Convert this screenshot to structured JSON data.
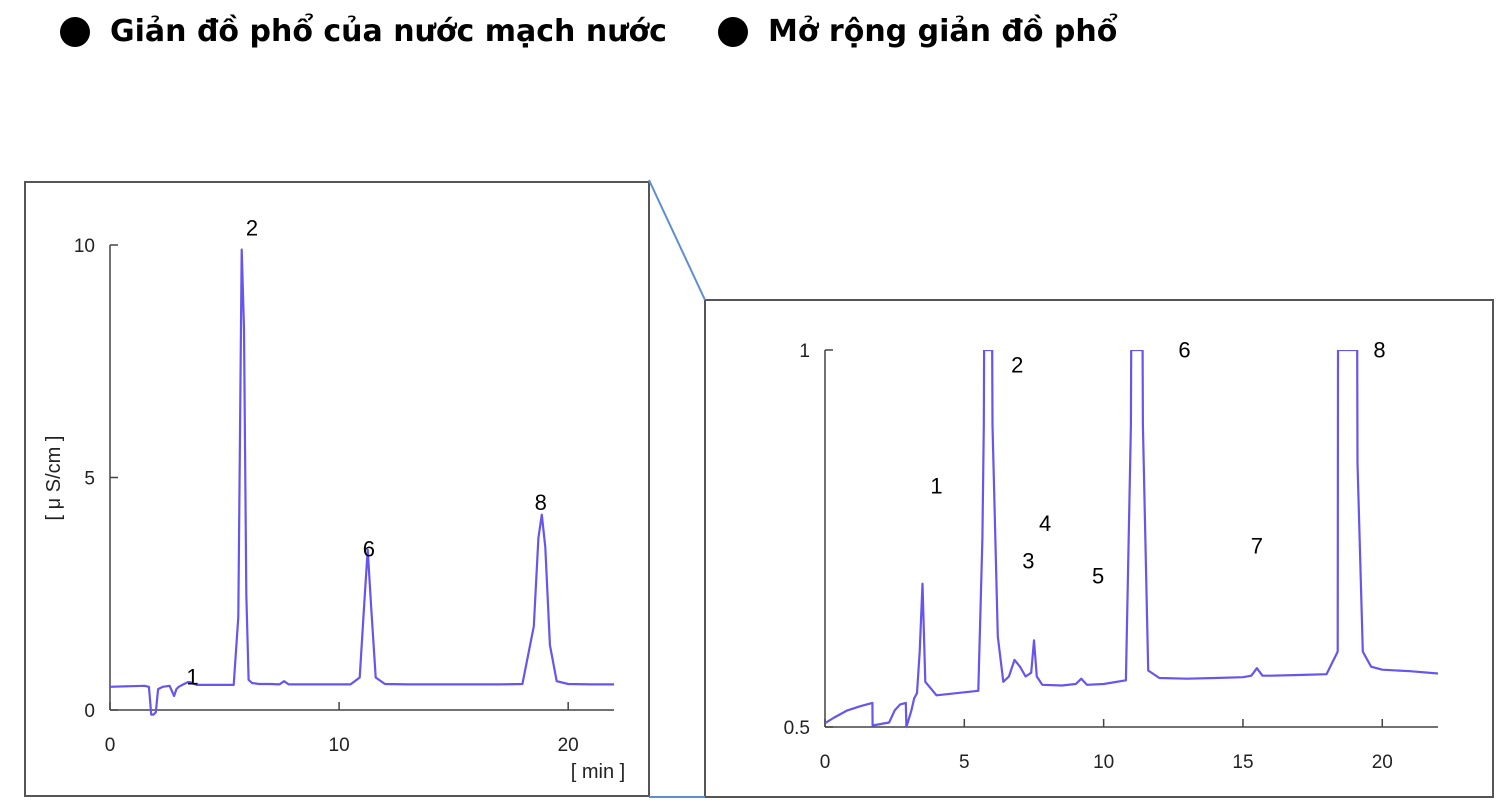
{
  "headings": [
    {
      "text": "Giản đồ phổ của nước mạch nước"
    },
    {
      "text": "Mở rộng giản đồ phổ"
    }
  ],
  "colors": {
    "trace": "#6655ee",
    "frame": "#555555",
    "connector": "#5b8fd0"
  },
  "chart_data": [
    {
      "type": "line",
      "title": "",
      "xlabel": "[ min ]",
      "ylabel": "[ μ S/cm ]",
      "xlim": [
        0,
        22
      ],
      "ylim": [
        0,
        10
      ],
      "xticks": [
        0,
        10,
        20
      ],
      "yticks": [
        0,
        5,
        10
      ],
      "grid": false,
      "series": [
        {
          "x": [
            0,
            1.5,
            1.7,
            1.75,
            1.8,
            1.9,
            2.0,
            2.1,
            2.3,
            2.6,
            2.8,
            2.9,
            3.0,
            3.2,
            3.4,
            3.5,
            3.6,
            3.8,
            4.5,
            5.4,
            5.6,
            5.75,
            5.85,
            5.95,
            6.05,
            6.2,
            6.5,
            7.0,
            7.4,
            7.6,
            7.8,
            8.5,
            9.5,
            10.5,
            10.9,
            11.1,
            11.25,
            11.4,
            11.6,
            12.0,
            13.0,
            15.0,
            17.0,
            18.0,
            18.5,
            18.7,
            18.85,
            19.0,
            19.2,
            19.5,
            20.0,
            21.0,
            22.0
          ],
          "y": [
            0.5,
            0.52,
            0.5,
            0.2,
            -0.1,
            -0.1,
            -0.05,
            0.45,
            0.5,
            0.52,
            0.3,
            0.45,
            0.5,
            0.55,
            0.6,
            0.6,
            0.57,
            0.54,
            0.54,
            0.54,
            2.0,
            9.9,
            8.2,
            2.5,
            0.65,
            0.58,
            0.56,
            0.56,
            0.55,
            0.62,
            0.55,
            0.55,
            0.55,
            0.55,
            0.7,
            2.3,
            3.45,
            2.2,
            0.7,
            0.56,
            0.55,
            0.55,
            0.55,
            0.56,
            1.8,
            3.7,
            4.2,
            3.5,
            1.4,
            0.62,
            0.56,
            0.55,
            0.55
          ]
        }
      ],
      "annotations": [
        {
          "label": "1",
          "x": 3.6,
          "y": 0.55
        },
        {
          "label": "2",
          "x": 6.2,
          "y": 10.2
        },
        {
          "label": "6",
          "x": 11.3,
          "y": 3.3
        },
        {
          "label": "8",
          "x": 18.8,
          "y": 4.3
        }
      ]
    },
    {
      "type": "line",
      "title": "",
      "xlabel": "",
      "ylabel": "",
      "xlim": [
        0,
        22
      ],
      "ylim": [
        0.5,
        1
      ],
      "xticks": [
        0,
        5,
        10,
        15,
        20
      ],
      "yticks": [
        0.5,
        1
      ],
      "grid": false,
      "series": [
        {
          "x": [
            0,
            0.3,
            0.8,
            1.3,
            1.7,
            1.71,
            2.3,
            2.5,
            2.7,
            2.9,
            2.92,
            3.1,
            3.2,
            3.3,
            3.4,
            3.5,
            3.6,
            4.0,
            5.0,
            5.5,
            5.65,
            5.7,
            5.71,
            6.0,
            6.01,
            6.2,
            6.4,
            6.6,
            6.8,
            7.0,
            7.2,
            7.4,
            7.5,
            7.6,
            7.8,
            8.5,
            9.0,
            9.2,
            9.4,
            10.0,
            10.8,
            10.98,
            10.99,
            11.4,
            11.41,
            11.6,
            12.0,
            13.0,
            14.0,
            15.0,
            15.3,
            15.5,
            15.7,
            16.0,
            17.0,
            18.0,
            18.4,
            18.41,
            19.1,
            19.11,
            19.3,
            19.6,
            20.0,
            21.0,
            22.0
          ],
          "y": [
            0.505,
            0.512,
            0.522,
            0.528,
            0.532,
            0.502,
            0.506,
            0.522,
            0.53,
            0.532,
            0.5,
            0.522,
            0.538,
            0.545,
            0.6,
            0.69,
            0.56,
            0.542,
            0.546,
            0.548,
            0.75,
            0.9,
            1.0,
            1.0,
            0.9,
            0.62,
            0.56,
            0.567,
            0.589,
            0.58,
            0.567,
            0.572,
            0.615,
            0.567,
            0.556,
            0.555,
            0.557,
            0.564,
            0.556,
            0.557,
            0.562,
            0.9,
            1.0,
            1.0,
            0.9,
            0.575,
            0.565,
            0.564,
            0.565,
            0.566,
            0.568,
            0.578,
            0.568,
            0.568,
            0.569,
            0.57,
            0.6,
            1.0,
            1.0,
            0.85,
            0.6,
            0.58,
            0.576,
            0.574,
            0.571
          ]
        }
      ],
      "annotations": [
        {
          "label": "1",
          "x": 4.0,
          "y": 0.81
        },
        {
          "label": "2",
          "x": 6.9,
          "y": 0.97
        },
        {
          "label": "3",
          "x": 7.3,
          "y": 0.71
        },
        {
          "label": "4",
          "x": 7.9,
          "y": 0.76
        },
        {
          "label": "5",
          "x": 9.8,
          "y": 0.69
        },
        {
          "label": "6",
          "x": 12.9,
          "y": 0.99
        },
        {
          "label": "7",
          "x": 15.5,
          "y": 0.73
        },
        {
          "label": "8",
          "x": 19.9,
          "y": 0.99
        }
      ]
    }
  ]
}
